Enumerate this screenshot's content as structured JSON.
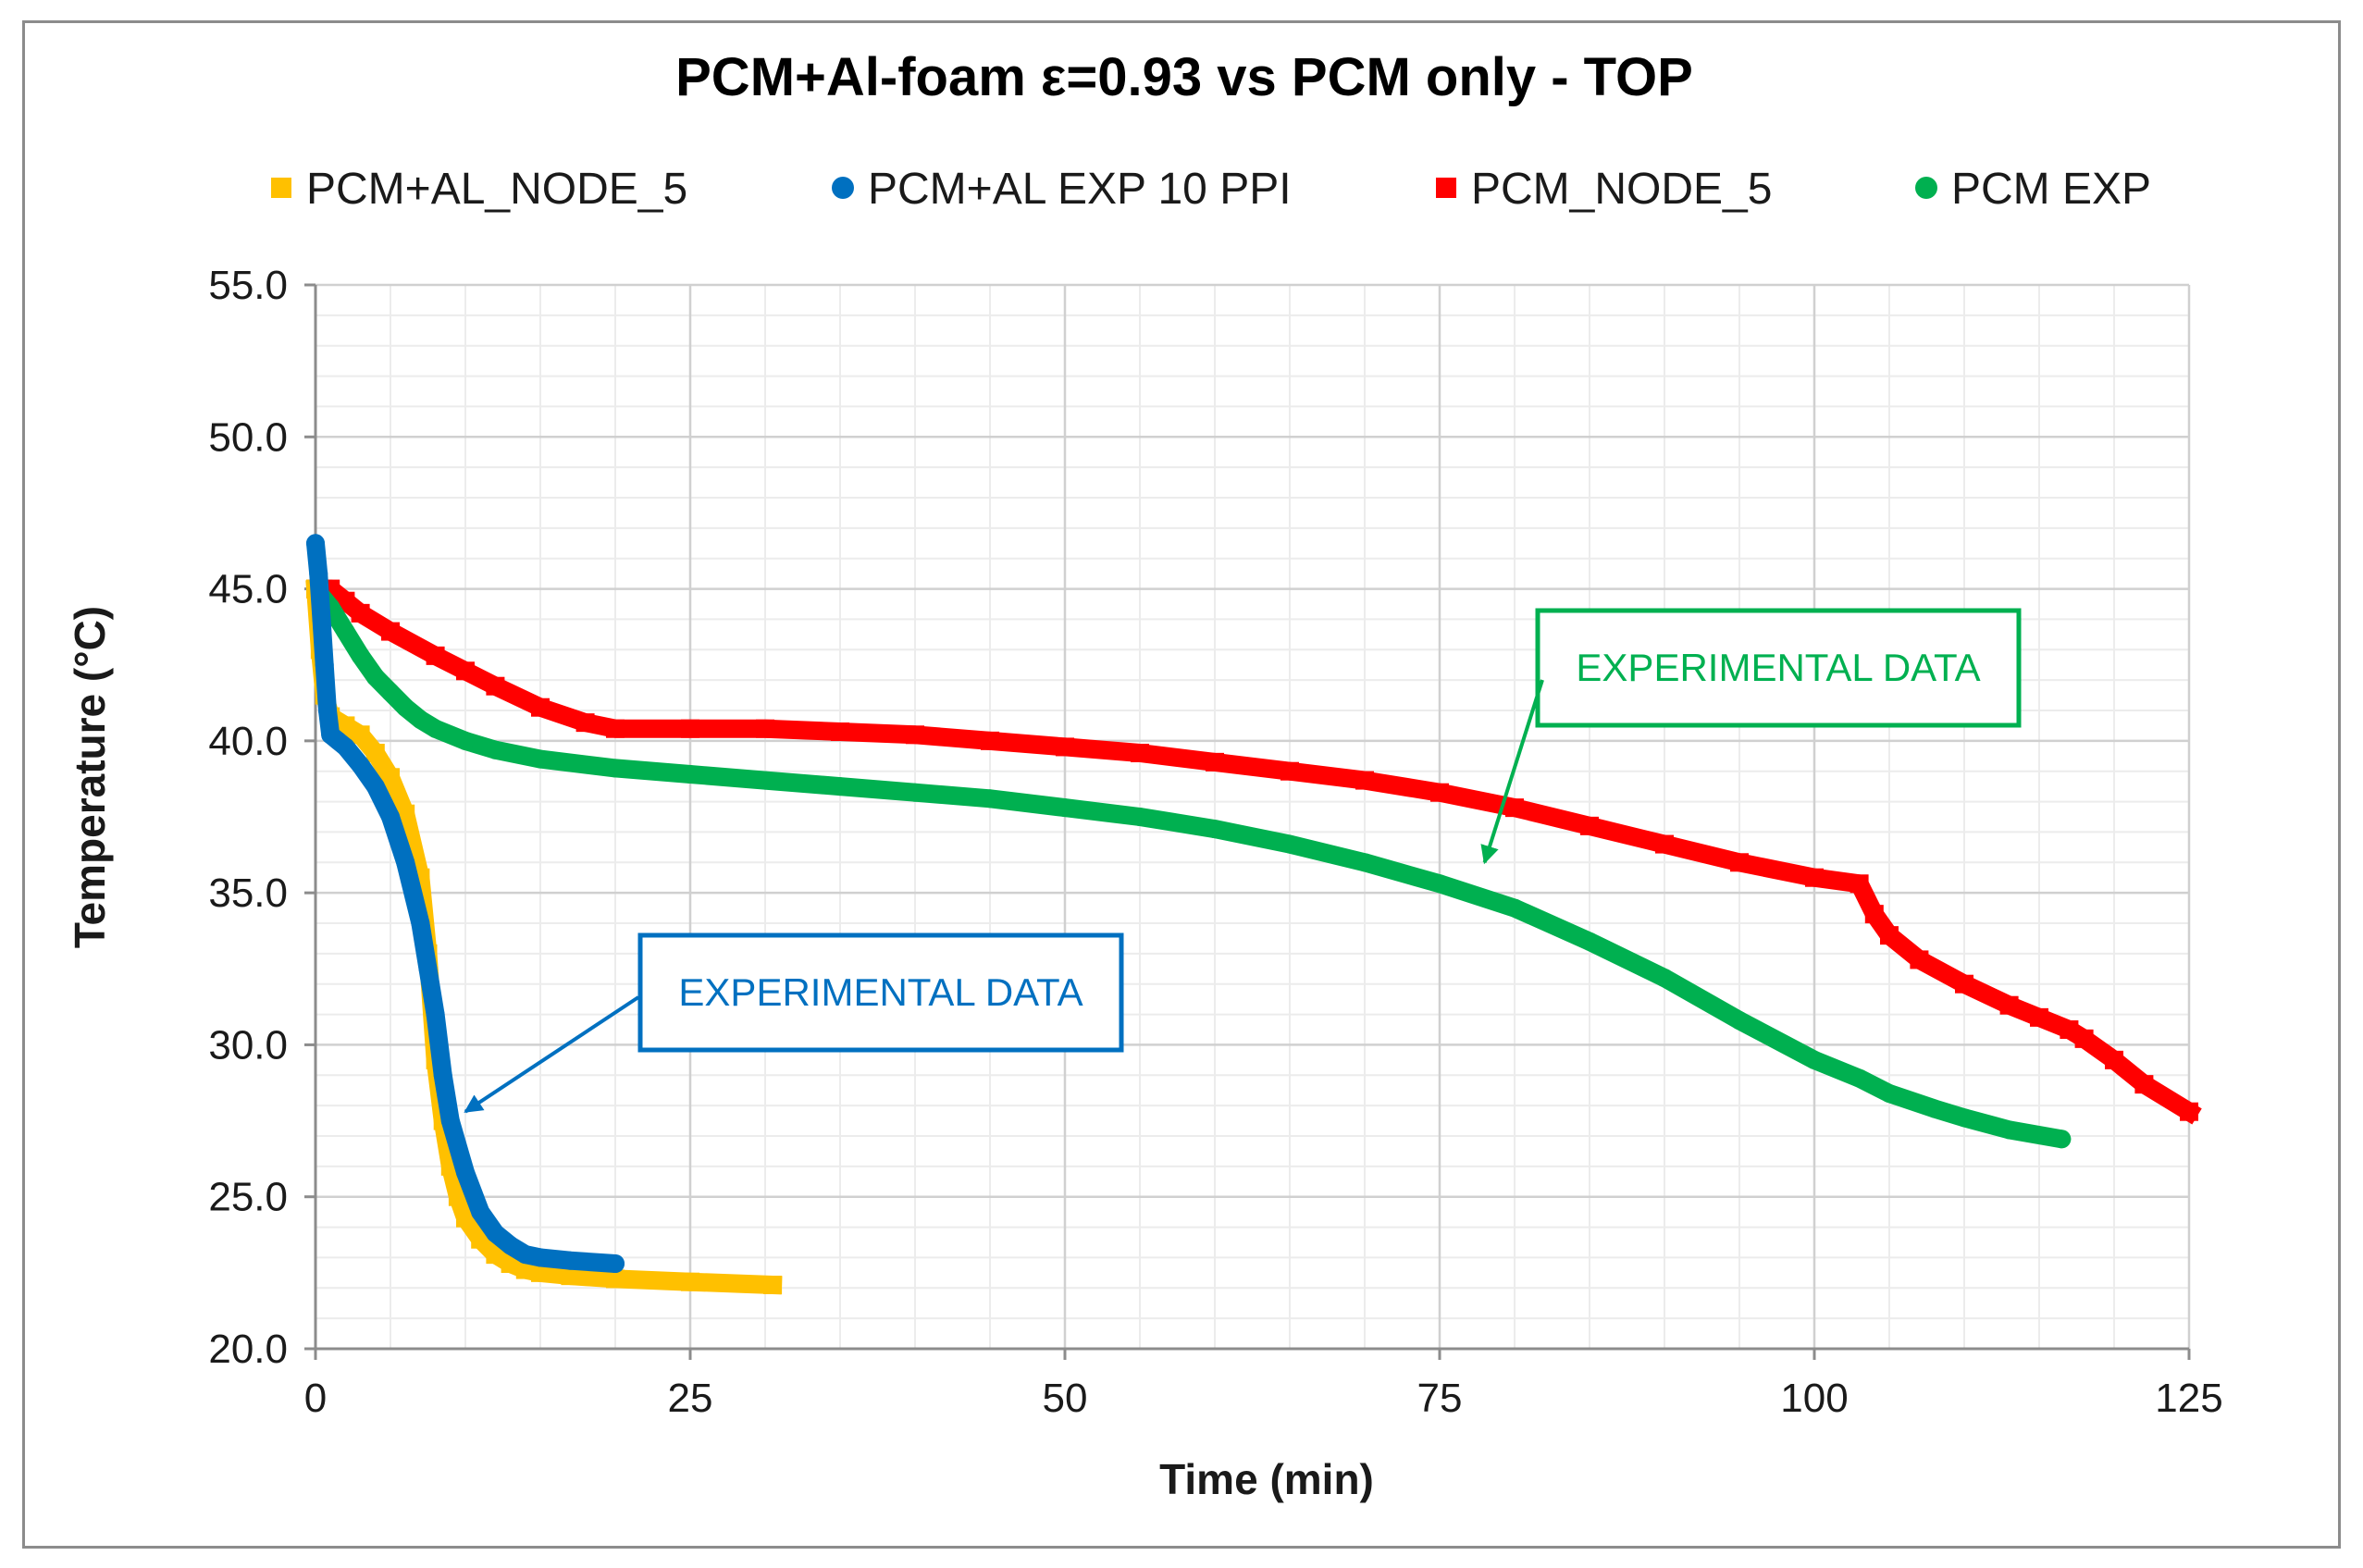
{
  "chart_data": {
    "type": "line",
    "title": "PCM+Al-foam ε=0.93   vs   PCM only  -  TOP",
    "xlabel": "Time (min)",
    "ylabel": "Temperature (°C)",
    "xlim": [
      0,
      125
    ],
    "ylim": [
      20,
      55
    ],
    "x_ticks": [
      "0",
      "25",
      "50",
      "75",
      "100",
      "125"
    ],
    "x_tick_values": [
      0,
      25,
      50,
      75,
      100,
      125
    ],
    "y_ticks": [
      "20.0",
      "25.0",
      "30.0",
      "35.0",
      "40.0",
      "45.0",
      "50.0",
      "55.0"
    ],
    "y_tick_values": [
      20,
      25,
      30,
      35,
      40,
      45,
      50,
      55
    ],
    "x_minor_step": 5,
    "y_minor_step": 1,
    "grid": true,
    "legend_position": "top",
    "series": [
      {
        "name": "PCM+AL_NODE_5",
        "color": "#FFC000",
        "marker": "square",
        "x": [
          0,
          0.3,
          0.6,
          1,
          2,
          3,
          4,
          5,
          6,
          7,
          7.5,
          8,
          8.5,
          9,
          9.5,
          10,
          11,
          12,
          13,
          14,
          15,
          17,
          20,
          25,
          30.5
        ],
        "y": [
          45.0,
          43.0,
          41.5,
          40.8,
          40.5,
          40.2,
          39.6,
          38.8,
          37.6,
          35.5,
          33.0,
          29.5,
          27.5,
          26.0,
          25.0,
          24.3,
          23.6,
          23.1,
          22.8,
          22.6,
          22.5,
          22.4,
          22.3,
          22.2,
          22.1
        ]
      },
      {
        "name": "PCM+AL EXP 10 PPI",
        "color": "#0070C0",
        "marker": "circle",
        "x": [
          0,
          0.2,
          0.4,
          0.6,
          0.8,
          1,
          1.5,
          2,
          3,
          4,
          5,
          6,
          7,
          7.5,
          8,
          8.5,
          9,
          10,
          11,
          12,
          13,
          14,
          15,
          17,
          20
        ],
        "y": [
          46.5,
          45.5,
          44.0,
          42.5,
          41.0,
          40.2,
          40.0,
          39.8,
          39.2,
          38.5,
          37.5,
          36.0,
          34.0,
          32.5,
          31.0,
          29.0,
          27.5,
          25.8,
          24.5,
          23.8,
          23.4,
          23.1,
          23.0,
          22.9,
          22.8
        ]
      },
      {
        "name": "PCM_NODE_5",
        "color": "#FF0000",
        "marker": "square",
        "x": [
          0,
          1,
          2,
          3,
          5,
          8,
          10,
          12,
          15,
          18,
          20,
          25,
          30,
          35,
          40,
          45,
          50,
          55,
          60,
          65,
          70,
          75,
          80,
          85,
          90,
          95,
          100,
          103,
          104,
          105,
          107,
          110,
          113,
          115,
          117,
          118,
          120,
          122,
          125
        ],
        "y": [
          45.0,
          45.0,
          44.6,
          44.2,
          43.6,
          42.8,
          42.3,
          41.8,
          41.1,
          40.6,
          40.4,
          40.4,
          40.4,
          40.3,
          40.2,
          40.0,
          39.8,
          39.6,
          39.3,
          39.0,
          38.7,
          38.3,
          37.8,
          37.2,
          36.6,
          36.0,
          35.5,
          35.3,
          34.3,
          33.6,
          32.8,
          32.0,
          31.3,
          30.9,
          30.5,
          30.2,
          29.5,
          28.7,
          27.8
        ]
      },
      {
        "name": "PCM EXP",
        "color": "#00B050",
        "marker": "circle",
        "x": [
          0,
          1,
          2,
          3,
          4,
          5,
          6,
          7,
          8,
          10,
          12,
          15,
          20,
          25,
          30,
          35,
          40,
          45,
          50,
          55,
          60,
          65,
          70,
          75,
          80,
          85,
          90,
          95,
          100,
          103,
          105,
          108,
          110,
          113,
          116.5
        ],
        "y": [
          45.0,
          44.4,
          43.6,
          42.8,
          42.1,
          41.6,
          41.1,
          40.7,
          40.4,
          40.0,
          39.7,
          39.4,
          39.1,
          38.9,
          38.7,
          38.5,
          38.3,
          38.1,
          37.8,
          37.5,
          37.1,
          36.6,
          36.0,
          35.3,
          34.5,
          33.4,
          32.2,
          30.8,
          29.5,
          28.9,
          28.4,
          27.9,
          27.6,
          27.2,
          26.9
        ]
      }
    ],
    "annotations": [
      {
        "text": "EXPERIMENTAL DATA",
        "color": "#0070C0",
        "points_to_series": "PCM+AL EXP 10 PPI",
        "target": {
          "x": 10,
          "y": 27.8
        }
      },
      {
        "text": "EXPERIMENTAL DATA",
        "color": "#00B050",
        "points_to_series": "PCM EXP",
        "target": {
          "x": 78,
          "y": 36.0
        }
      }
    ]
  }
}
